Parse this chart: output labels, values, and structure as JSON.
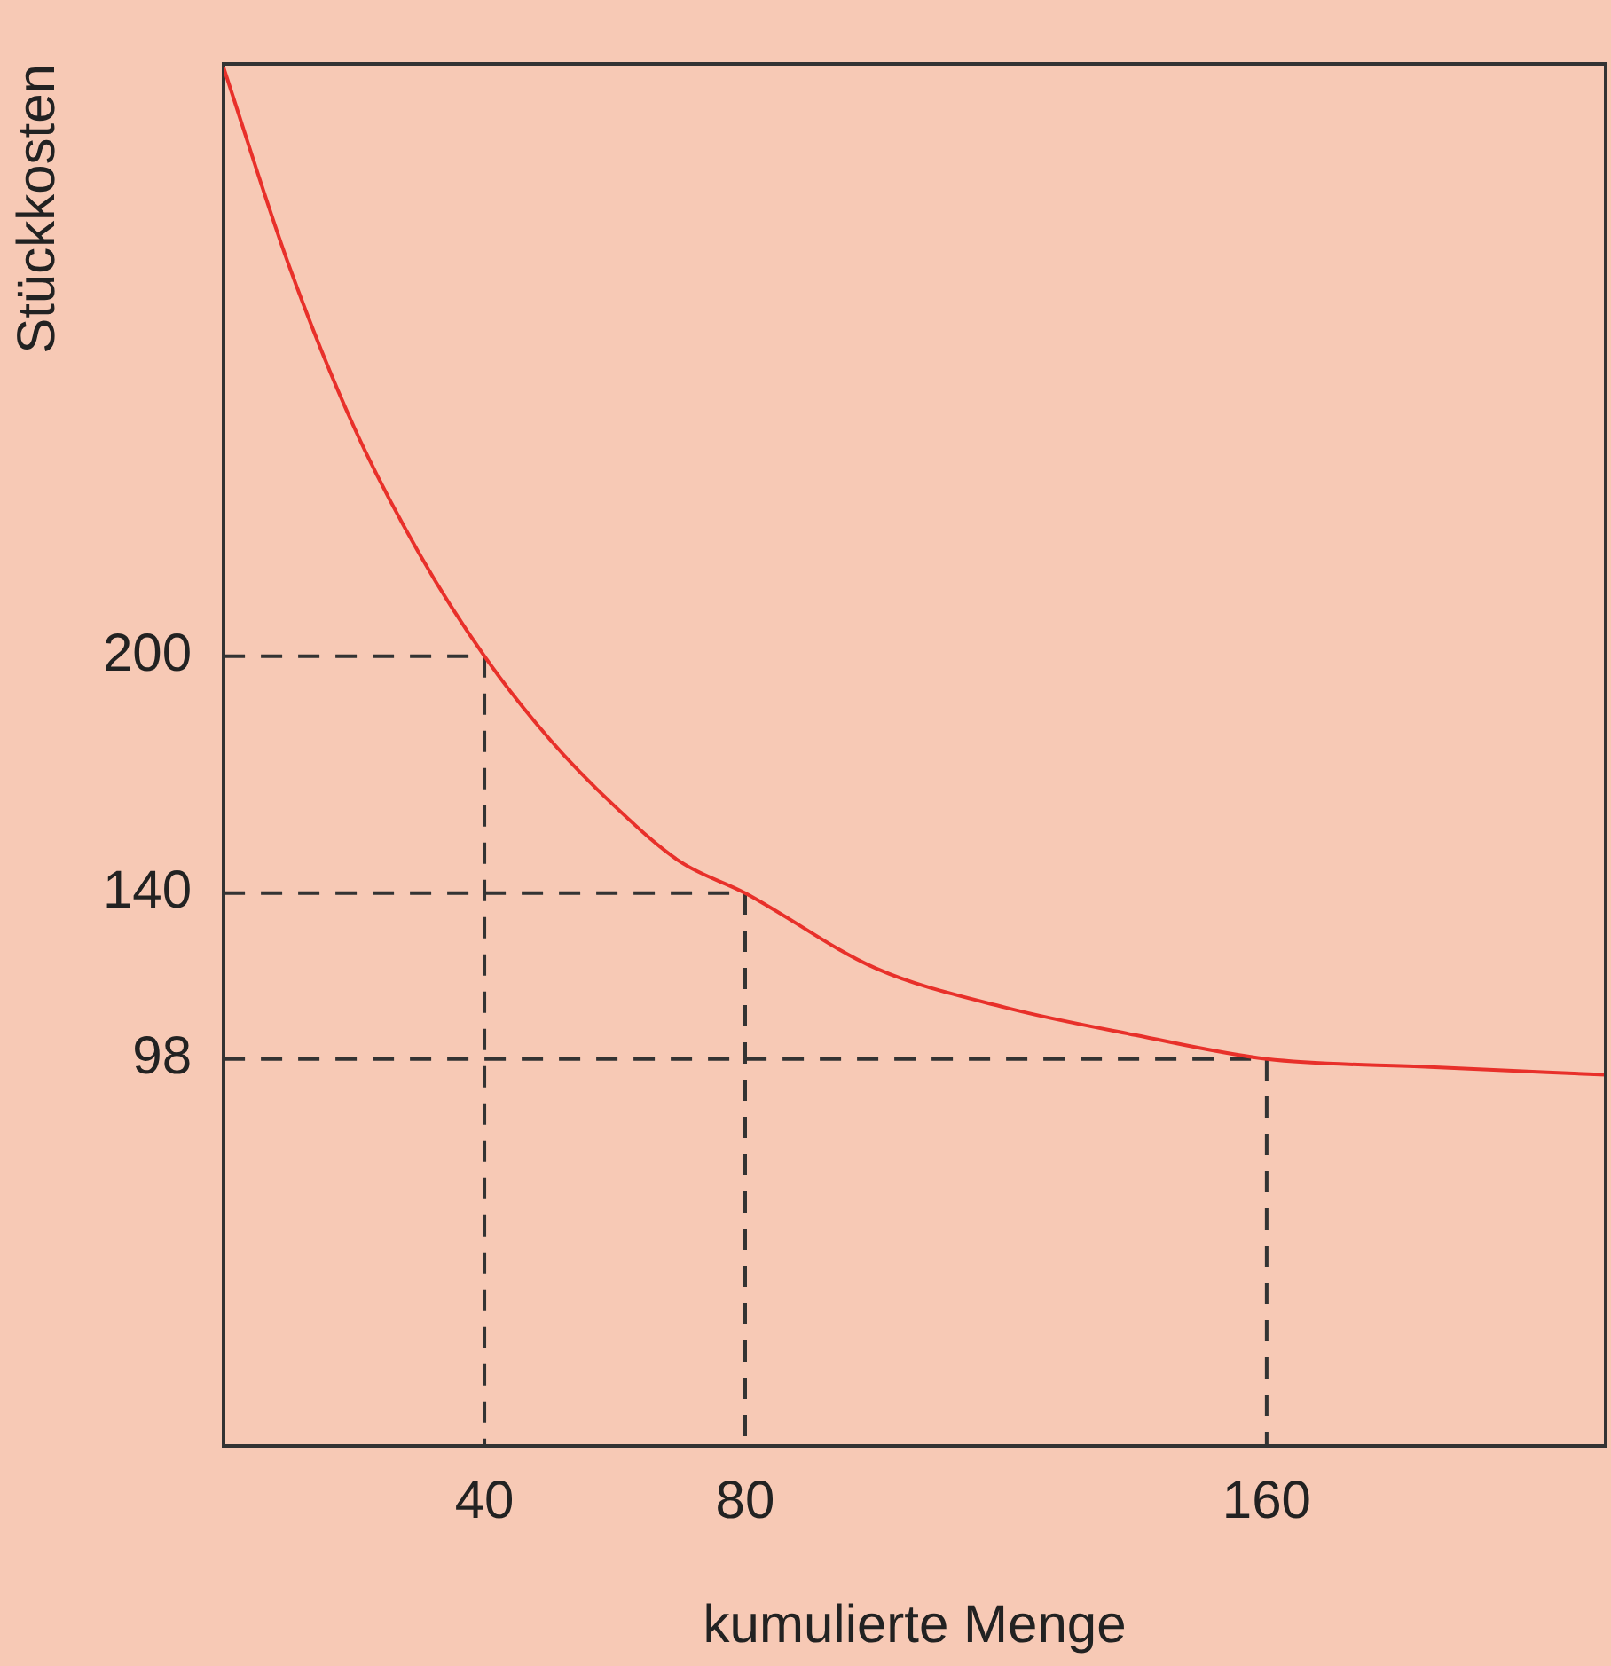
{
  "chart_data": {
    "type": "line",
    "xlabel": "kumulierte Menge",
    "ylabel": "Stückkosten",
    "xlim": [
      0,
      212
    ],
    "ylim": [
      0,
      350
    ],
    "xticks": [
      40,
      80,
      160
    ],
    "yticks": [
      98,
      140,
      200
    ],
    "grid": false,
    "legend": false,
    "marker": "none",
    "series": [
      {
        "color": "#e8302a",
        "line_style": "solid",
        "x": [
          0,
          10,
          20,
          30,
          40,
          50,
          60,
          70,
          80,
          100,
          120,
          140,
          160,
          185,
          212
        ],
        "values": [
          349,
          299,
          258,
          226,
          200,
          179,
          162,
          148,
          140,
          121,
          111,
          104,
          98,
          96,
          94
        ]
      },
      {
        "color": "#333333",
        "line_style": "dashed",
        "x": [
          0,
          40,
          40
        ],
        "values": [
          200,
          200,
          0
        ]
      },
      {
        "color": "#333333",
        "line_style": "dashed",
        "x": [
          0,
          80,
          80
        ],
        "values": [
          140,
          140,
          0
        ]
      },
      {
        "color": "#333333",
        "line_style": "dashed",
        "x": [
          0,
          160,
          160
        ],
        "values": [
          98,
          98,
          0
        ]
      }
    ]
  }
}
